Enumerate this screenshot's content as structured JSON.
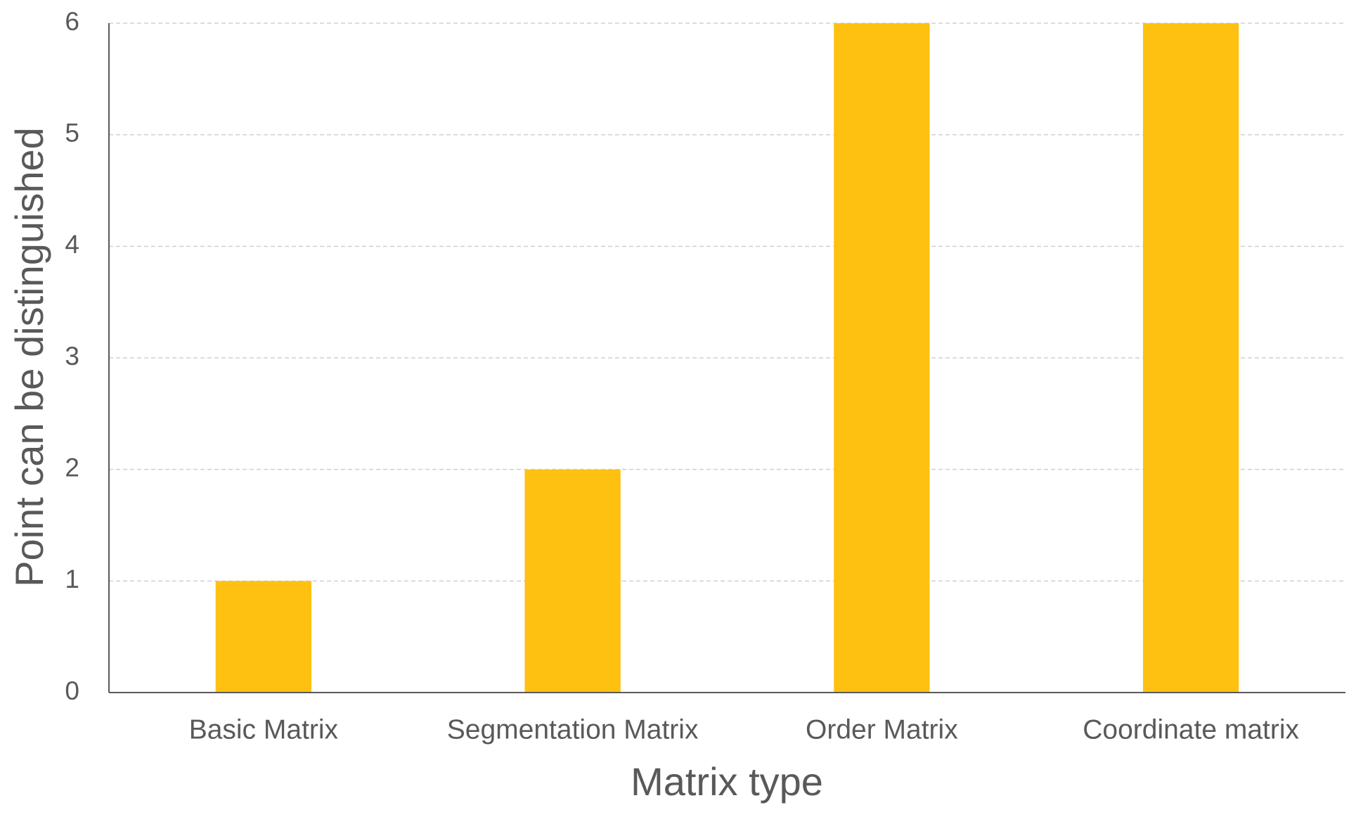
{
  "chart_data": {
    "type": "bar",
    "x_label": "Matrix type",
    "y_label": "Point can be distinguished",
    "categories": [
      "Basic Matrix",
      "Segmentation Matrix",
      "Order Matrix",
      "Coordinate matrix"
    ],
    "values": [
      1,
      2,
      6,
      6
    ],
    "color": "#fec112",
    "ylim": [
      0,
      6
    ],
    "yticks": [
      0,
      1,
      2,
      3,
      4,
      5,
      6
    ],
    "grid": true
  }
}
